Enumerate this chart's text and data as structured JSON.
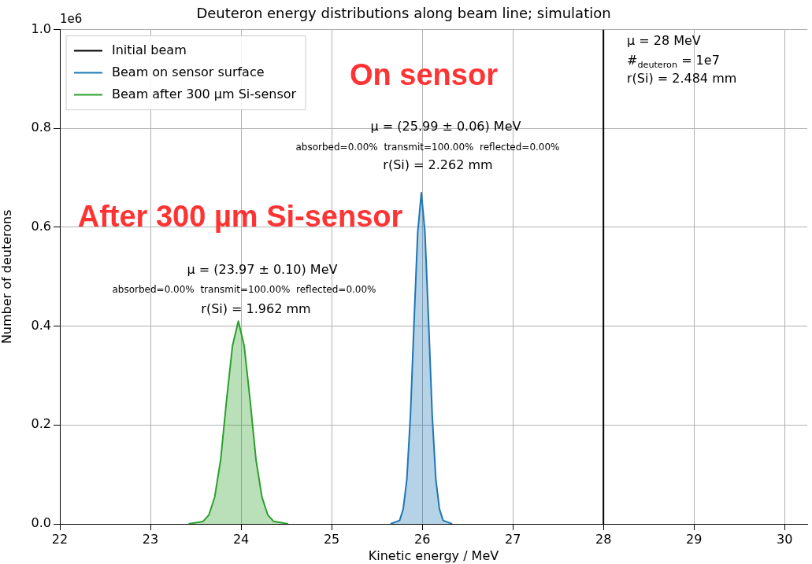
{
  "chart_data": {
    "type": "line",
    "title": "Deuteron energy distributions along beam line; simulation",
    "xlabel": "Kinetic energy / MeV",
    "ylabel": "Number of deuterons",
    "xlim": [
      22,
      30.25
    ],
    "xticks": [
      22,
      23,
      24,
      25,
      26,
      27,
      28,
      29,
      30
    ],
    "ylim": [
      0,
      1
    ],
    "yticks": [
      {
        "value": 0,
        "label": "0.0"
      },
      {
        "value": 0.2,
        "label": "0.2"
      },
      {
        "value": 0.4,
        "label": "0.4"
      },
      {
        "value": 0.6,
        "label": "0.6"
      },
      {
        "value": 0.8,
        "label": "0.8"
      },
      {
        "value": 1,
        "label": "1.0"
      }
    ],
    "grid": true,
    "legend": "top left",
    "series": [
      {
        "name": "Initial beam",
        "color": "#000000",
        "x": [
          28,
          28
        ],
        "values": [
          0,
          1
        ]
      },
      {
        "name": "Beam on sensor surface",
        "type": "area",
        "color": "#1f77b4",
        "x": [
          25.65,
          25.75,
          25.79,
          25.83,
          25.87,
          25.91,
          25.95,
          25.99,
          26.03,
          26.07,
          26.11,
          26.15,
          26.19,
          26.23,
          26.33
        ],
        "values": [
          0,
          0.007,
          0.03,
          0.09,
          0.22,
          0.41,
          0.59,
          0.67,
          0.59,
          0.41,
          0.22,
          0.09,
          0.03,
          0.007,
          0
        ]
      },
      {
        "name": "Beam after 300 µm Si-sensor",
        "type": "area",
        "color": "#2ca02c",
        "x": [
          23.42,
          23.58,
          23.645,
          23.71,
          23.775,
          23.84,
          23.905,
          23.97,
          24.035,
          24.1,
          24.165,
          24.23,
          24.295,
          24.36,
          24.52
        ],
        "values": [
          0,
          0.005,
          0.018,
          0.055,
          0.13,
          0.25,
          0.36,
          0.41,
          0.36,
          0.25,
          0.13,
          0.055,
          0.018,
          0.005,
          0
        ]
      }
    ],
    "annotations": [
      "1e6",
      "On sensor",
      "After 300 µm Si-sensor",
      "μ = (25.99 ± 0.06) MeV",
      "absorbed=0.00%  transmit=100.00%  reflected=0.00%",
      "r(Si) = 2.262 mm",
      "μ = (23.97 ± 0.10) MeV",
      "absorbed=0.00%  transmit=100.00%  reflected=0.00%",
      "r(Si) = 1.962 mm",
      "μ = 28 MeV",
      "#$_{deuteron}$ = 1e7",
      "r(Si) = 2.484 mm"
    ]
  }
}
